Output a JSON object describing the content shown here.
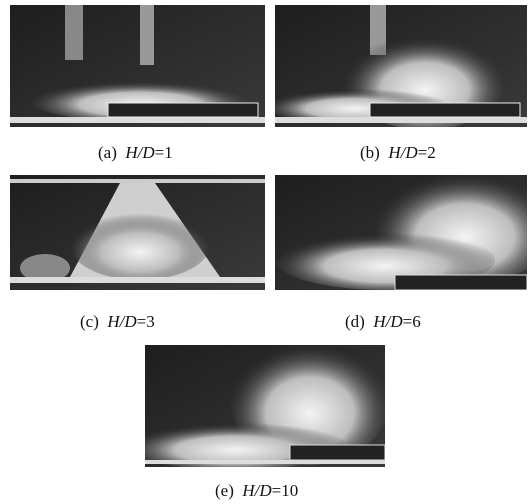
{
  "panels": [
    {
      "label": "(a)",
      "variable": "H/D",
      "value": "=1"
    },
    {
      "label": "(b)",
      "variable": "H/D",
      "value": "=2"
    },
    {
      "label": "(c)",
      "variable": "H/D",
      "value": "=3"
    },
    {
      "label": "(d)",
      "variable": "H/D",
      "value": "=6"
    },
    {
      "label": "(e)",
      "variable": "H/D",
      "value": "=10"
    }
  ]
}
